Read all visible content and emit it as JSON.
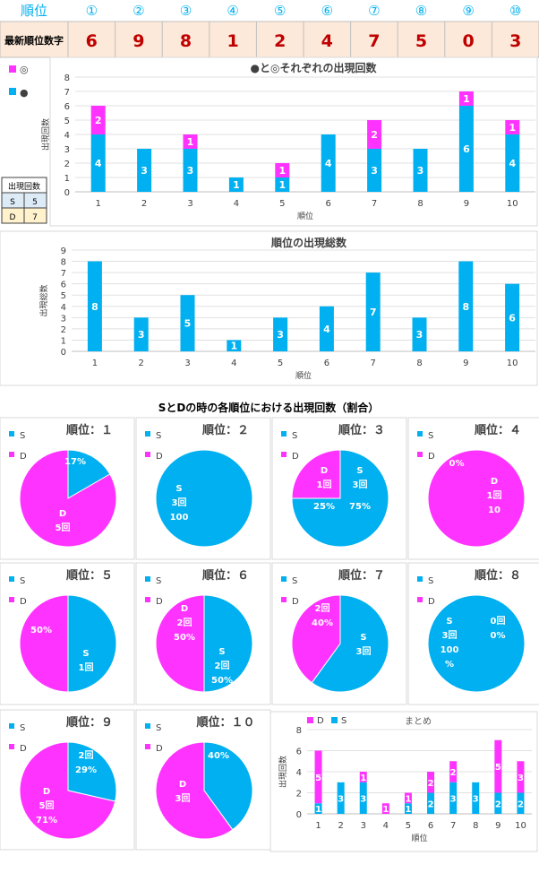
{
  "header": {
    "rank_label": "順位",
    "ranks": [
      "①",
      "②",
      "③",
      "④",
      "⑤",
      "⑥",
      "⑦",
      "⑧",
      "⑨",
      "⑩"
    ],
    "latest_label": "最新順位数字",
    "latest_digits": [
      "6",
      "9",
      "8",
      "1",
      "2",
      "4",
      "7",
      "5",
      "0",
      "3"
    ]
  },
  "legend_box": {
    "title": "出現回数",
    "rows": [
      [
        "S",
        "5"
      ],
      [
        "D",
        "7"
      ]
    ]
  },
  "colors": {
    "blue": "#00b0f0",
    "magenta": "#ff33ff",
    "header_blue": "#00b0f0",
    "header_bg": "#fde9d9",
    "header_text": "#c00000",
    "legend_d_bg": "#fff2cc",
    "legend_s_bg": "#ddebf7"
  },
  "chart_data": [
    {
      "type": "bar",
      "title": "●と◎それぞれの出現回数",
      "legend": [
        "◎",
        "●"
      ],
      "categories": [
        "1",
        "2",
        "3",
        "4",
        "5",
        "6",
        "7",
        "8",
        "9",
        "10"
      ],
      "series": [
        {
          "name": "●",
          "values": [
            4,
            3,
            3,
            1,
            1,
            4,
            3,
            3,
            6,
            4
          ],
          "labels": [
            "4",
            "3",
            "3",
            "1",
            "1",
            "4",
            "3",
            "3",
            "6",
            "4"
          ]
        },
        {
          "name": "◎",
          "values": [
            2,
            0,
            1,
            0,
            1,
            0,
            2,
            0,
            1,
            1
          ],
          "labels": [
            "2",
            "",
            "1",
            "",
            "1",
            "",
            "2",
            "",
            "1",
            "1"
          ]
        }
      ],
      "xlabel": "順位",
      "ylabel": "出現回数",
      "ylim": [
        0,
        8
      ],
      "yticks": [
        "0",
        "1",
        "2",
        "3",
        "4",
        "5",
        "6",
        "7",
        "8"
      ]
    },
    {
      "type": "bar",
      "title": "順位の出現総数",
      "categories": [
        "1",
        "2",
        "3",
        "4",
        "5",
        "6",
        "7",
        "8",
        "9",
        "10"
      ],
      "series": [
        {
          "values": [
            8,
            3,
            5,
            1,
            3,
            4,
            7,
            3,
            8,
            6
          ],
          "labels": [
            "8",
            "3",
            "5",
            "1",
            "3",
            "4",
            "7",
            "3",
            "8",
            "6"
          ]
        }
      ],
      "xlabel": "順位",
      "ylabel": "出現総数",
      "ylim": [
        0,
        9
      ],
      "yticks": [
        "0",
        "1",
        "2",
        "3",
        "4",
        "5",
        "6",
        "7",
        "8",
        "9"
      ]
    },
    {
      "type": "pie",
      "section_title": "SとDの時の各順位における出現回数（割合）",
      "legend": [
        "S",
        "D"
      ],
      "pies": [
        {
          "title": "順位：１",
          "s": 1,
          "d": 5,
          "labels": [
            {
              "t": "17%"
            },
            {
              "t": "D"
            },
            {
              "t": "5回"
            }
          ]
        },
        {
          "title": "順位：２",
          "s": 3,
          "d": 0,
          "labels": [
            {
              "t": "S"
            },
            {
              "t": "3回"
            },
            {
              "t": "100"
            }
          ]
        },
        {
          "title": "順位：３",
          "s": 3,
          "d": 1,
          "labels": [
            {
              "t": "D"
            },
            {
              "t": "1回"
            },
            {
              "t": "25%"
            },
            {
              "t": "S"
            },
            {
              "t": "3回"
            },
            {
              "t": "75%"
            }
          ]
        },
        {
          "title": "順位：４",
          "s": 0,
          "d": 1,
          "labels": [
            {
              "t": "0%"
            },
            {
              "t": "D"
            },
            {
              "t": "1回"
            },
            {
              "t": "10"
            }
          ]
        },
        {
          "title": "順位：５",
          "s": 1,
          "d": 1,
          "labels": [
            {
              "t": "50%"
            },
            {
              "t": "S"
            },
            {
              "t": "1回"
            }
          ]
        },
        {
          "title": "順位：６",
          "s": 2,
          "d": 2,
          "labels": [
            {
              "t": "D"
            },
            {
              "t": "2回"
            },
            {
              "t": "50%"
            },
            {
              "t": "S"
            },
            {
              "t": "2回"
            },
            {
              "t": "50%"
            }
          ]
        },
        {
          "title": "順位：７",
          "s": 3,
          "d": 2,
          "labels": [
            {
              "t": "2回"
            },
            {
              "t": "40%"
            },
            {
              "t": "S"
            },
            {
              "t": "3回"
            }
          ]
        },
        {
          "title": "順位：８",
          "s": 3,
          "d": 0,
          "labels": [
            {
              "t": "S"
            },
            {
              "t": "3回"
            },
            {
              "t": "100"
            },
            {
              "t": "%"
            },
            {
              "t": "0回"
            },
            {
              "t": "0%"
            }
          ]
        },
        {
          "title": "順位：９",
          "s": 2,
          "d": 5,
          "labels": [
            {
              "t": "2回"
            },
            {
              "t": "29%"
            },
            {
              "t": "D"
            },
            {
              "t": "5回"
            },
            {
              "t": "71%"
            }
          ]
        },
        {
          "title": "順位：１０",
          "s": 2,
          "d": 3,
          "labels": [
            {
              "t": "40%"
            },
            {
              "t": "D"
            },
            {
              "t": "3回"
            }
          ]
        }
      ]
    },
    {
      "type": "bar",
      "title": "まとめ",
      "legend": [
        "D",
        "S"
      ],
      "categories": [
        "1",
        "2",
        "3",
        "4",
        "5",
        "6",
        "7",
        "8",
        "9",
        "10"
      ],
      "series": [
        {
          "name": "S",
          "values": [
            1,
            3,
            3,
            0,
            1,
            2,
            3,
            3,
            2,
            2
          ],
          "labels": [
            "1",
            "3",
            "3",
            "0",
            "1",
            "2",
            "3",
            "3",
            "2",
            "2"
          ]
        },
        {
          "name": "D",
          "values": [
            5,
            0,
            1,
            1,
            1,
            2,
            2,
            0,
            5,
            3
          ],
          "labels": [
            "5",
            "0",
            "1",
            "1",
            "1",
            "2",
            "2",
            "0",
            "5",
            "3"
          ]
        }
      ],
      "xlabel": "順位",
      "ylabel": "出現回数",
      "ylim": [
        0,
        8
      ],
      "yticks": [
        "0",
        "2",
        "4",
        "6",
        "8"
      ]
    }
  ]
}
